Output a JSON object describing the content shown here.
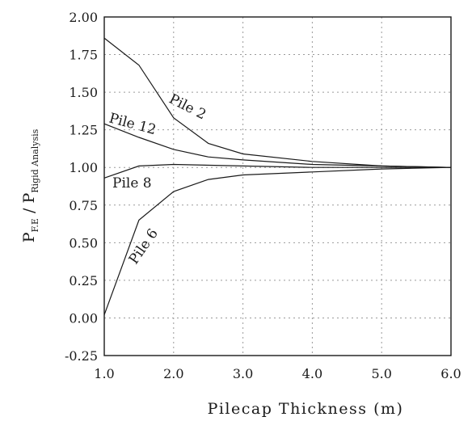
{
  "chart_data": {
    "type": "line",
    "xlabel": "Pilecap Thickness (m)",
    "ylabel": {
      "main": "P",
      "sub1": "F.E",
      "sep": " / ",
      "main2": "P",
      "sub2": "Rigid Analysis"
    },
    "xlim": [
      1.0,
      6.0
    ],
    "ylim": [
      -0.25,
      2.0
    ],
    "x_ticks": [
      {
        "value": 1.0,
        "label": "1.0"
      },
      {
        "value": 2.0,
        "label": "2.0"
      },
      {
        "value": 3.0,
        "label": "3.0"
      },
      {
        "value": 4.0,
        "label": "4.0"
      },
      {
        "value": 5.0,
        "label": "5.0"
      },
      {
        "value": 6.0,
        "label": "6.0"
      }
    ],
    "y_ticks": [
      {
        "value": 2.0,
        "label": "2.00"
      },
      {
        "value": 1.75,
        "label": "1.75"
      },
      {
        "value": 1.5,
        "label": "1.50"
      },
      {
        "value": 1.25,
        "label": "1.25"
      },
      {
        "value": 1.0,
        "label": "1.00"
      },
      {
        "value": 0.75,
        "label": "0.75"
      },
      {
        "value": 0.5,
        "label": "0.50"
      },
      {
        "value": 0.25,
        "label": "0.25"
      },
      {
        "value": 0.0,
        "label": "0.00"
      },
      {
        "value": -0.25,
        "label": "-0.25"
      }
    ],
    "grid": "dotted",
    "series": [
      {
        "name": "Pile 2",
        "x": [
          1.0,
          1.5,
          2.0,
          2.5,
          3.0,
          4.0,
          5.0,
          6.0
        ],
        "y": [
          1.86,
          1.68,
          1.33,
          1.16,
          1.09,
          1.04,
          1.01,
          1.0
        ]
      },
      {
        "name": "Pile 12",
        "x": [
          1.0,
          1.5,
          2.0,
          2.5,
          3.0,
          4.0,
          5.0,
          6.0
        ],
        "y": [
          1.29,
          1.2,
          1.12,
          1.07,
          1.05,
          1.02,
          1.01,
          1.0
        ]
      },
      {
        "name": "Pile 8",
        "x": [
          1.0,
          1.5,
          2.0,
          3.0,
          4.0,
          5.0,
          6.0
        ],
        "y": [
          0.93,
          1.01,
          1.02,
          1.01,
          1.0,
          1.0,
          1.0
        ]
      },
      {
        "name": "Pile 6",
        "x": [
          1.0,
          1.5,
          2.0,
          2.5,
          3.0,
          4.0,
          5.0,
          6.0
        ],
        "y": [
          0.02,
          0.65,
          0.84,
          0.92,
          0.95,
          0.97,
          0.99,
          1.0
        ]
      }
    ]
  }
}
